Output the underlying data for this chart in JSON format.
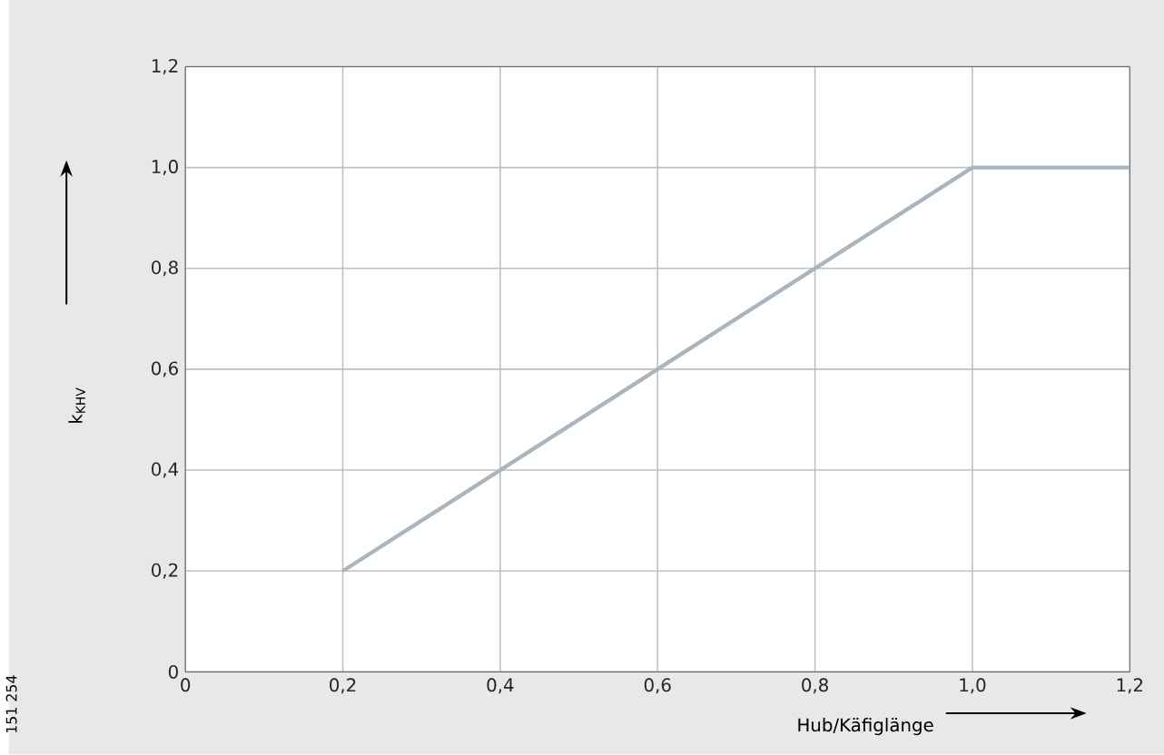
{
  "chart_data": {
    "type": "line",
    "xlabel": "Hub/Käfiglänge",
    "ylabel": "k$_{KHV}$",
    "x": [
      0.2,
      1.0,
      1.2
    ],
    "series": [
      {
        "color": "#a9b5bf",
        "values": [
          0.2,
          1.0,
          1.0
        ]
      }
    ],
    "xlim": [
      0,
      1.2
    ],
    "ylim": [
      0,
      1.2
    ],
    "xticks": [
      0,
      {
        "value": 0.2,
        "label": "0,2"
      },
      {
        "value": 0.4,
        "label": "0,4"
      },
      {
        "value": 0.6,
        "label": "0,6"
      },
      {
        "value": 0.8,
        "label": "0,8"
      },
      {
        "value": 1.0,
        "label": "1,0"
      },
      {
        "value": 1.2,
        "label": "1,2"
      }
    ],
    "yticks": [
      0,
      {
        "value": 0.2,
        "label": "0,2"
      },
      {
        "value": 0.4,
        "label": "0,4"
      },
      {
        "value": 0.6,
        "label": "0,6"
      },
      {
        "value": 0.8,
        "label": "0,8"
      },
      {
        "value": 1.0,
        "label": "1,0"
      },
      {
        "value": 1.2,
        "label": "1,2"
      }
    ],
    "grid": true,
    "marker": "none",
    "line_style": "solid",
    "annotations": [
      "151 254"
    ]
  }
}
